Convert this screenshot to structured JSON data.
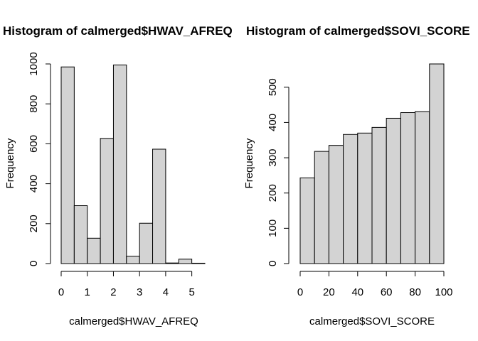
{
  "chart_data": [
    {
      "type": "bar",
      "subtype": "histogram",
      "title": "Histogram of calmerged$HWAV_AFREQ",
      "xlabel": "calmerged$HWAV_AFREQ",
      "ylabel": "Frequency",
      "bin_edges": [
        0,
        0.5,
        1,
        1.5,
        2,
        2.5,
        3,
        3.5,
        4,
        4.5,
        5,
        5.5
      ],
      "values": [
        985,
        290,
        127,
        627,
        995,
        37,
        202,
        573,
        3,
        22,
        2
      ],
      "xlim": [
        0,
        5.5
      ],
      "ylim": [
        0,
        1000
      ],
      "xticks": [
        0,
        1,
        2,
        3,
        4,
        5
      ],
      "yticks": [
        0,
        200,
        400,
        600,
        800,
        1000
      ],
      "bar_color": "#d3d3d3",
      "grid": false
    },
    {
      "type": "bar",
      "subtype": "histogram",
      "title": "Histogram of calmerged$SOVI_SCORE",
      "xlabel": "calmerged$SOVI_SCORE",
      "ylabel": "Frequency",
      "bin_edges": [
        0,
        10,
        20,
        30,
        40,
        50,
        60,
        70,
        80,
        90,
        100
      ],
      "values": [
        243,
        318,
        335,
        366,
        370,
        386,
        412,
        428,
        431,
        566
      ],
      "xlim": [
        0,
        100
      ],
      "ylim": [
        0,
        566
      ],
      "xticks": [
        0,
        20,
        40,
        60,
        80,
        100
      ],
      "yticks": [
        0,
        100,
        200,
        300,
        400,
        500
      ],
      "bar_color": "#d3d3d3",
      "grid": false
    }
  ]
}
